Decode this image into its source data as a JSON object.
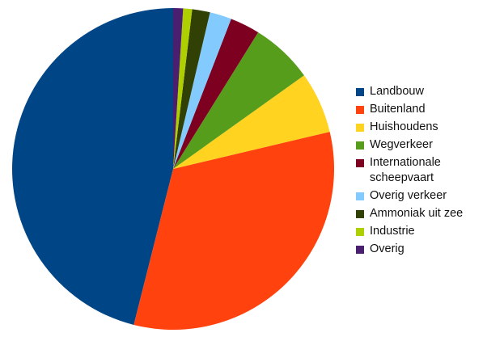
{
  "chart_data": {
    "type": "pie",
    "title": "",
    "start_angle_deg": 0,
    "direction": "counterclockwise",
    "legend_position": "right",
    "slices": [
      {
        "label": "Landbouw",
        "value": 46.3,
        "color": "#004586"
      },
      {
        "label": "Buitenland",
        "value": 32.8,
        "color": "#ff420e"
      },
      {
        "label": "Huishoudens",
        "value": 6.2,
        "color": "#ffd320"
      },
      {
        "label": "Wegverkeer",
        "value": 6.3,
        "color": "#579d1c"
      },
      {
        "label": "Internationale scheepvaart",
        "value": 3.0,
        "color": "#7e0021"
      },
      {
        "label": "Overig verkeer",
        "value": 2.2,
        "color": "#83caff"
      },
      {
        "label": "Ammoniak uit zee",
        "value": 1.8,
        "color": "#314004"
      },
      {
        "label": "Industrie",
        "value": 0.9,
        "color": "#aecf00"
      },
      {
        "label": "Overig",
        "value": 1.0,
        "color": "#4b1f6f"
      }
    ]
  }
}
